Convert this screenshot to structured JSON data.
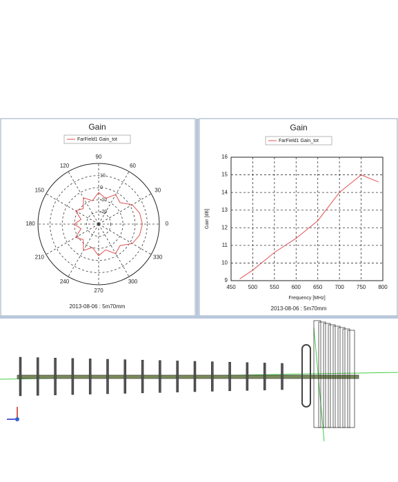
{
  "chart_data": [
    {
      "type": "polar",
      "title": "Gain",
      "legend": "FarField1 Gain_tot",
      "footer": "2013-08-06 : 5m70mm",
      "color": "#e05050",
      "x": [
        0,
        15,
        30,
        45,
        60,
        75,
        90,
        105,
        120,
        135,
        150,
        165,
        180,
        195,
        210,
        225,
        240,
        255,
        270,
        285,
        300,
        315,
        330,
        345,
        360
      ],
      "values": [
        6,
        5,
        2,
        -5,
        -2,
        -8,
        -4,
        -10,
        -5,
        -12,
        -8,
        -15,
        -10,
        -15,
        -8,
        -12,
        -5,
        -10,
        -4,
        -8,
        -2,
        -5,
        2,
        5,
        6
      ],
      "xticks": [
        0,
        30,
        60,
        90,
        120,
        150,
        180,
        210,
        240,
        270,
        300,
        330
      ],
      "rlim": [
        -30,
        20
      ],
      "rticks": [
        -20,
        -10,
        0,
        10
      ]
    },
    {
      "type": "line",
      "title": "Gain",
      "footer": "2013-08-06 : 5m70mm",
      "x_label": "Frequency [MHz]",
      "y_label": "Gain [dB]",
      "x": [
        470,
        500,
        550,
        600,
        650,
        700,
        750,
        790
      ],
      "series": [
        {
          "name": "FarField1 Gain_tot",
          "color": "#e05050",
          "values": [
            9.1,
            9.6,
            10.6,
            11.4,
            12.4,
            14.0,
            15.0,
            14.6
          ]
        }
      ],
      "xlim": [
        450,
        800
      ],
      "xticks": [
        450,
        500,
        550,
        600,
        650,
        700,
        750,
        800
      ],
      "ylim": [
        9,
        16
      ],
      "yticks": [
        9,
        10,
        11,
        12,
        13,
        14,
        15,
        16
      ],
      "grid": true
    }
  ]
}
